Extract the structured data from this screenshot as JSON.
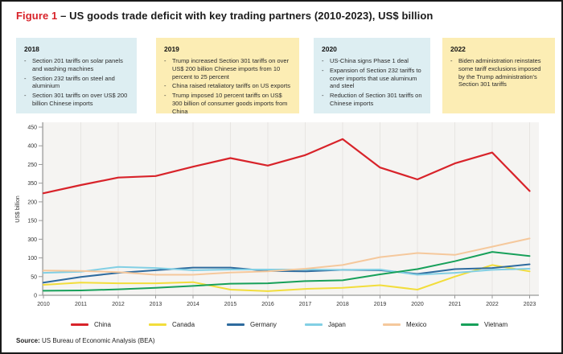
{
  "title": {
    "figure_label": "Figure 1",
    "separator": " – ",
    "text": "US goods trade deficit with key trading partners (2010-2023), US$ billion"
  },
  "annotations": {
    "boxes": [
      {
        "year": "2018",
        "tone": "blue",
        "bullets": [
          "Section 201 tariffs on solar panels and washing machines",
          "Section 232 tariffs on steel and aluminium",
          "Section 301 tariffs on over US$ 200 billion Chinese imports"
        ]
      },
      {
        "year": "2019",
        "tone": "yellow",
        "bullets": [
          "Trump increased Section 301 tariffs on over US$ 200 billion Chinese imports from 10 percent to 25 percent",
          "China raised retaliatory tariffs on US exports",
          "Trump imposed 10 percent tariffs on US$ 300 billion of consumer goods imports from China"
        ]
      },
      {
        "year": "2020",
        "tone": "blue",
        "bullets": [
          "US-China signs Phase 1 deal",
          "Expansion of Section 232 tariffs to cover imports that use aluminum and steel",
          "Reduction of Section 301 tariffs on Chinese imports"
        ]
      },
      {
        "year": "2022",
        "tone": "yellow",
        "bullets": [
          "Biden administration reinstates some tariff exclusions imposed by the Trump administration's Section 301 tariffs"
        ]
      }
    ]
  },
  "chart_data": {
    "type": "line",
    "title": "US goods trade deficit with key trading partners (2010-2023), US$ billion",
    "ylabel": "US$ billion",
    "x": [
      2010,
      2011,
      2012,
      2013,
      2014,
      2015,
      2016,
      2017,
      2018,
      2019,
      2020,
      2021,
      2022,
      2023
    ],
    "ylim": [
      0,
      450
    ],
    "y_tick_interval": 50,
    "y_axis_tick_labels_top_to_bottom": [
      "450",
      "400",
      "250",
      "350",
      "200",
      "150",
      "300",
      "100",
      "50",
      "0"
    ],
    "grid": "vertical-per-year",
    "legend_position": "bottom",
    "series": [
      {
        "name": "China",
        "color": "#d8232a",
        "values": [
          273,
          295,
          315,
          319,
          344,
          367,
          347,
          375,
          418,
          342,
          310,
          353,
          382,
          279
        ]
      },
      {
        "name": "Canada",
        "color": "#f2dd3b",
        "values": [
          28,
          34,
          32,
          32,
          35,
          15,
          11,
          17,
          20,
          27,
          15,
          50,
          81,
          64
        ]
      },
      {
        "name": "Germany",
        "color": "#2e6b9e",
        "values": [
          34,
          49,
          60,
          67,
          74,
          74,
          65,
          64,
          68,
          67,
          57,
          70,
          73,
          83
        ]
      },
      {
        "name": "Japan",
        "color": "#82cfe4",
        "values": [
          60,
          63,
          76,
          73,
          67,
          69,
          69,
          69,
          68,
          69,
          55,
          60,
          68,
          71
        ]
      },
      {
        "name": "Mexico",
        "color": "#f5c89c",
        "values": [
          66,
          65,
          62,
          55,
          55,
          61,
          64,
          71,
          81,
          102,
          113,
          108,
          130,
          152
        ]
      },
      {
        "name": "Vietnam",
        "color": "#17a05a",
        "values": [
          12,
          13,
          16,
          20,
          25,
          31,
          32,
          38,
          40,
          56,
          70,
          91,
          116,
          105
        ]
      }
    ]
  },
  "source": {
    "label": "Source:",
    "text": " US Bureau of Economic Analysis (BEA)"
  },
  "colors": {
    "figure_label_red": "#d8232a",
    "box_blue": "#ddeef2",
    "box_yellow": "#fcedb4",
    "plot_bg": "#f5f4f2",
    "gridline": "#e7e5e2",
    "axis": "#999999",
    "tick_text": "#333333"
  }
}
